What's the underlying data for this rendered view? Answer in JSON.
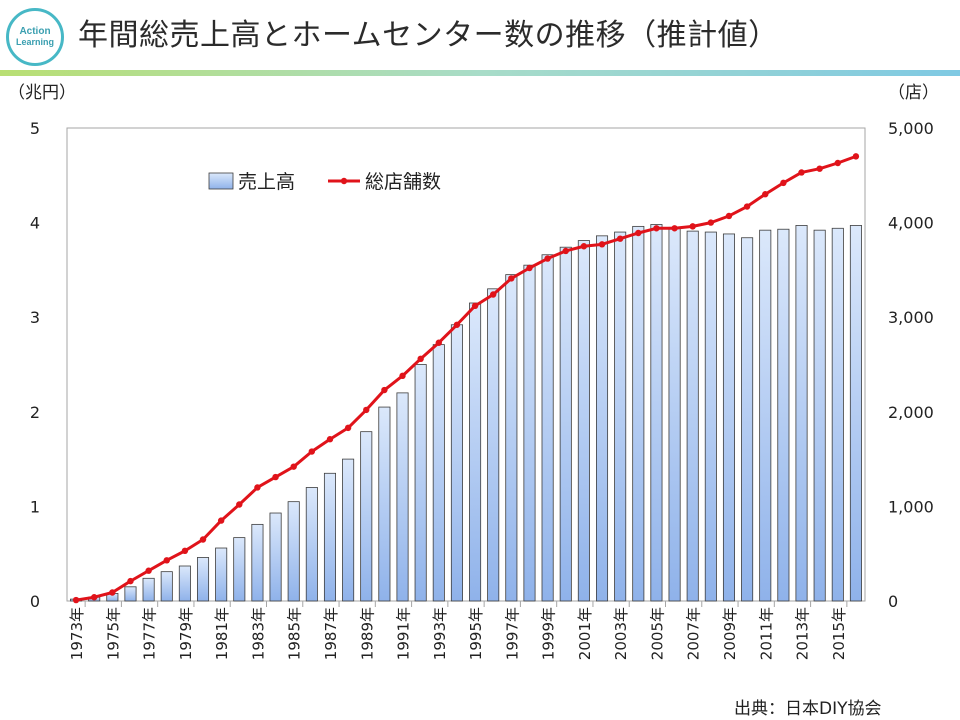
{
  "slide": {
    "logo_text_1": "Action",
    "logo_text_2": "Learning",
    "title": "年間総売上高とホームセンター数の推移（推計値）",
    "source": "出典：日本DIY協会"
  },
  "colors": {
    "bar_top": "#dbe8fb",
    "bar_bottom": "#8fb2ea",
    "bar_stroke": "#3d3d3d",
    "line": "#e0131a",
    "accent": "#47b8c6"
  },
  "chart_data": {
    "type": "bar+line",
    "title": "年間総売上高とホームセンター数の推移（推計値）",
    "y_left_label": "（兆円）",
    "y_right_label": "（店）",
    "y_left_range": [
      0,
      5
    ],
    "y_left_ticks": [
      "0",
      "1",
      "2",
      "3",
      "4",
      "5"
    ],
    "y_right_range": [
      0,
      5000
    ],
    "y_right_ticks": [
      "0",
      "1,000",
      "2,000",
      "3,000",
      "4,000",
      "5,000"
    ],
    "x_tick_labels": [
      "1973年",
      "1975年",
      "1977年",
      "1979年",
      "1981年",
      "1983年",
      "1985年",
      "1987年",
      "1989年",
      "1991年",
      "1993年",
      "1995年",
      "1997年",
      "1999年",
      "2001年",
      "2003年",
      "2005年",
      "2007年",
      "2009年",
      "2011年",
      "2013年",
      "2015年"
    ],
    "x": [
      1973,
      1974,
      1975,
      1976,
      1977,
      1978,
      1979,
      1980,
      1981,
      1982,
      1983,
      1984,
      1985,
      1986,
      1987,
      1988,
      1989,
      1990,
      1991,
      1992,
      1993,
      1994,
      1995,
      1996,
      1997,
      1998,
      1999,
      2000,
      2001,
      2002,
      2003,
      2004,
      2005,
      2006,
      2007,
      2008,
      2009,
      2010,
      2011,
      2012,
      2013,
      2014,
      2015,
      2016
    ],
    "series": [
      {
        "name": "売上高",
        "type": "bar",
        "axis": "left",
        "values": [
          0.02,
          0.04,
          0.08,
          0.15,
          0.24,
          0.31,
          0.37,
          0.46,
          0.56,
          0.67,
          0.81,
          0.93,
          1.05,
          1.2,
          1.35,
          1.5,
          1.79,
          2.05,
          2.2,
          2.5,
          2.71,
          2.92,
          3.15,
          3.3,
          3.45,
          3.55,
          3.66,
          3.74,
          3.81,
          3.86,
          3.9,
          3.96,
          3.98,
          3.95,
          3.91,
          3.9,
          3.88,
          3.84,
          3.92,
          3.93,
          3.97,
          3.92,
          3.94,
          3.97
        ]
      },
      {
        "name": "総店舗数",
        "type": "line",
        "axis": "right",
        "values": [
          10,
          40,
          90,
          210,
          320,
          430,
          530,
          650,
          850,
          1020,
          1200,
          1310,
          1420,
          1580,
          1710,
          1830,
          2020,
          2230,
          2380,
          2560,
          2730,
          2920,
          3120,
          3240,
          3410,
          3520,
          3620,
          3700,
          3750,
          3770,
          3830,
          3890,
          3940,
          3940,
          3960,
          4000,
          4070,
          4170,
          4300,
          4420,
          4530,
          4570,
          4630,
          4700
        ]
      }
    ]
  }
}
